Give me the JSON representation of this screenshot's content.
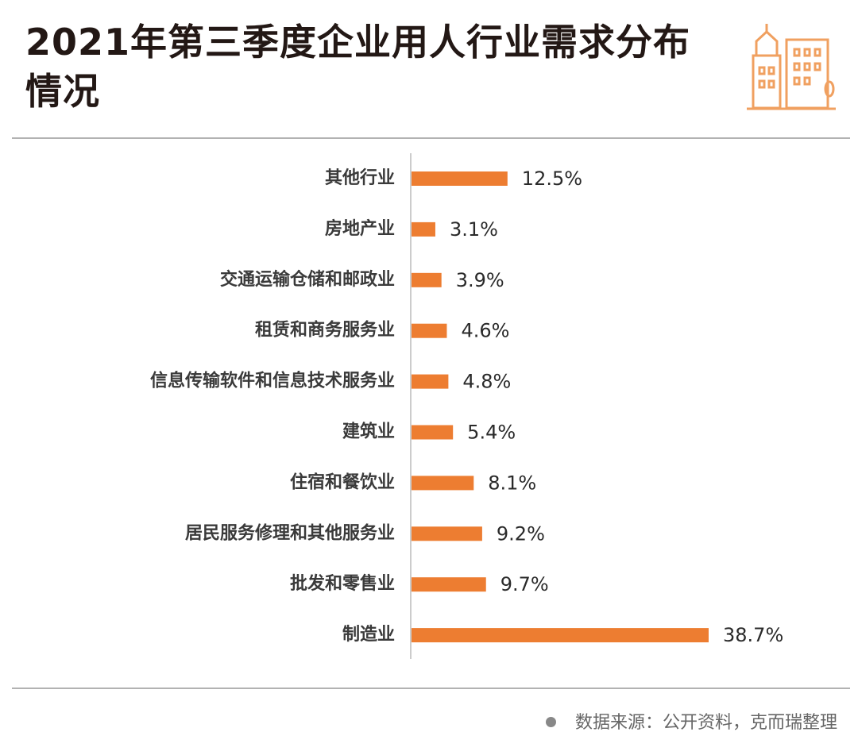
{
  "chart_data": {
    "type": "bar",
    "orientation": "horizontal",
    "title": "2021年第三季度企业用人行业需求分布情况",
    "categories": [
      "其他行业",
      "房地产业",
      "交通运输仓储和邮政业",
      "租赁和商务服务业",
      "信息传输软件和信息技术服务业",
      "建筑业",
      "住宿和餐饮业",
      "居民服务修理和其他服务业",
      "批发和零售业",
      "制造业"
    ],
    "values": [
      12.5,
      3.1,
      3.9,
      4.6,
      4.8,
      5.4,
      8.1,
      9.2,
      9.7,
      38.7
    ],
    "value_labels": [
      "12.5%",
      "3.1%",
      "3.9%",
      "4.6%",
      "4.8%",
      "5.4%",
      "8.1%",
      "9.2%",
      "9.7%",
      "38.7%"
    ],
    "color": "#ed7d31",
    "source": "数据来源：公开资料，克而瑞整理"
  }
}
